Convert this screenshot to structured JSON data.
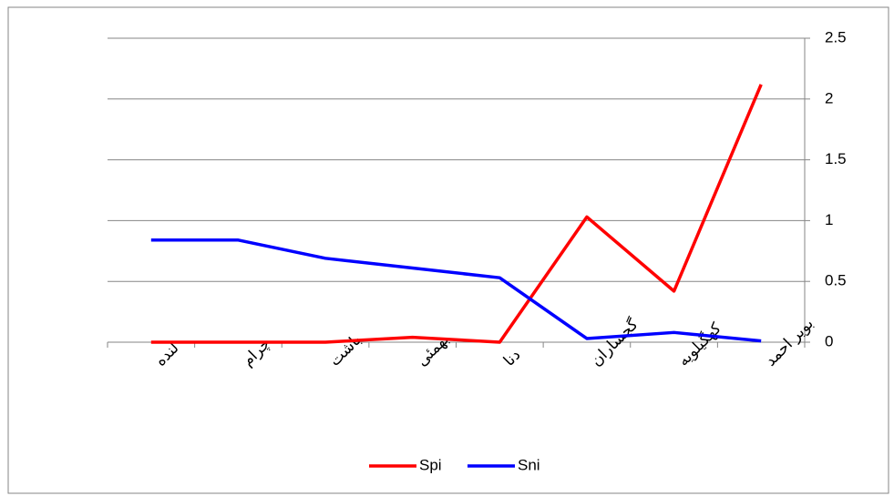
{
  "chart_data": {
    "type": "line",
    "categories": [
      "لنده",
      "چرام",
      "باشت",
      "بهمئی",
      "دنا",
      "گچساران",
      "کهگیلویه",
      "بویر احمد"
    ],
    "series": [
      {
        "name": "Spi",
        "color": "#ff0000",
        "values": [
          0,
          0,
          0,
          0.04,
          0,
          1.03,
          0.42,
          2.12
        ]
      },
      {
        "name": "Sni",
        "color": "#0000ff",
        "values": [
          0.84,
          0.84,
          0.69,
          0.61,
          0.53,
          0.03,
          0.08,
          0.01
        ]
      }
    ],
    "ylim": [
      0,
      2.5
    ],
    "yticks": [
      0,
      0.5,
      1,
      1.5,
      2,
      2.5
    ],
    "grid": true,
    "y_axis_side": "right",
    "legend": "bottom"
  }
}
